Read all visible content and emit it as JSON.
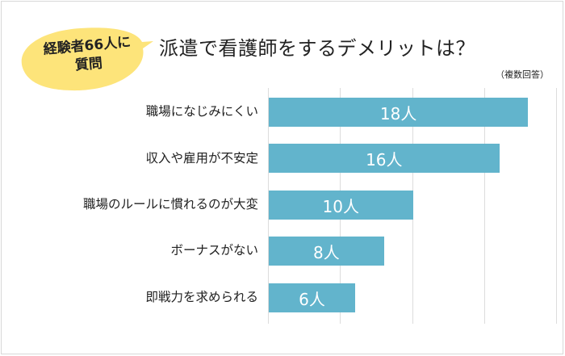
{
  "bubble": {
    "line1": "経験者66人に",
    "line2": "質問",
    "fill": "#fde47a"
  },
  "title": "派遣で看護師をするデメリットは？",
  "note": "（複数回答）",
  "colors": {
    "bar": "#62b4cc",
    "grid": "#dcdcdc"
  },
  "chart_data": {
    "type": "bar",
    "orientation": "horizontal",
    "title": "派遣で看護師をするデメリットは？",
    "subtitle": "経験者66人に質問",
    "annotation": "（複数回答）",
    "categories": [
      "職場になじみにくい",
      "収入や雇用が不安定",
      "職場のルールに慣れるのが大変",
      "ボーナスがない",
      "即戦力を求められる"
    ],
    "values": [
      18,
      16,
      10,
      8,
      6
    ],
    "value_labels": [
      "18人",
      "16人",
      "10人",
      "8人",
      "6人"
    ],
    "unit": "人",
    "xlabel": "",
    "ylabel": "",
    "xlim": [
      0,
      20
    ],
    "grid": true,
    "grid_ticks": [
      0,
      5,
      10,
      15,
      20
    ],
    "legend": "none"
  }
}
